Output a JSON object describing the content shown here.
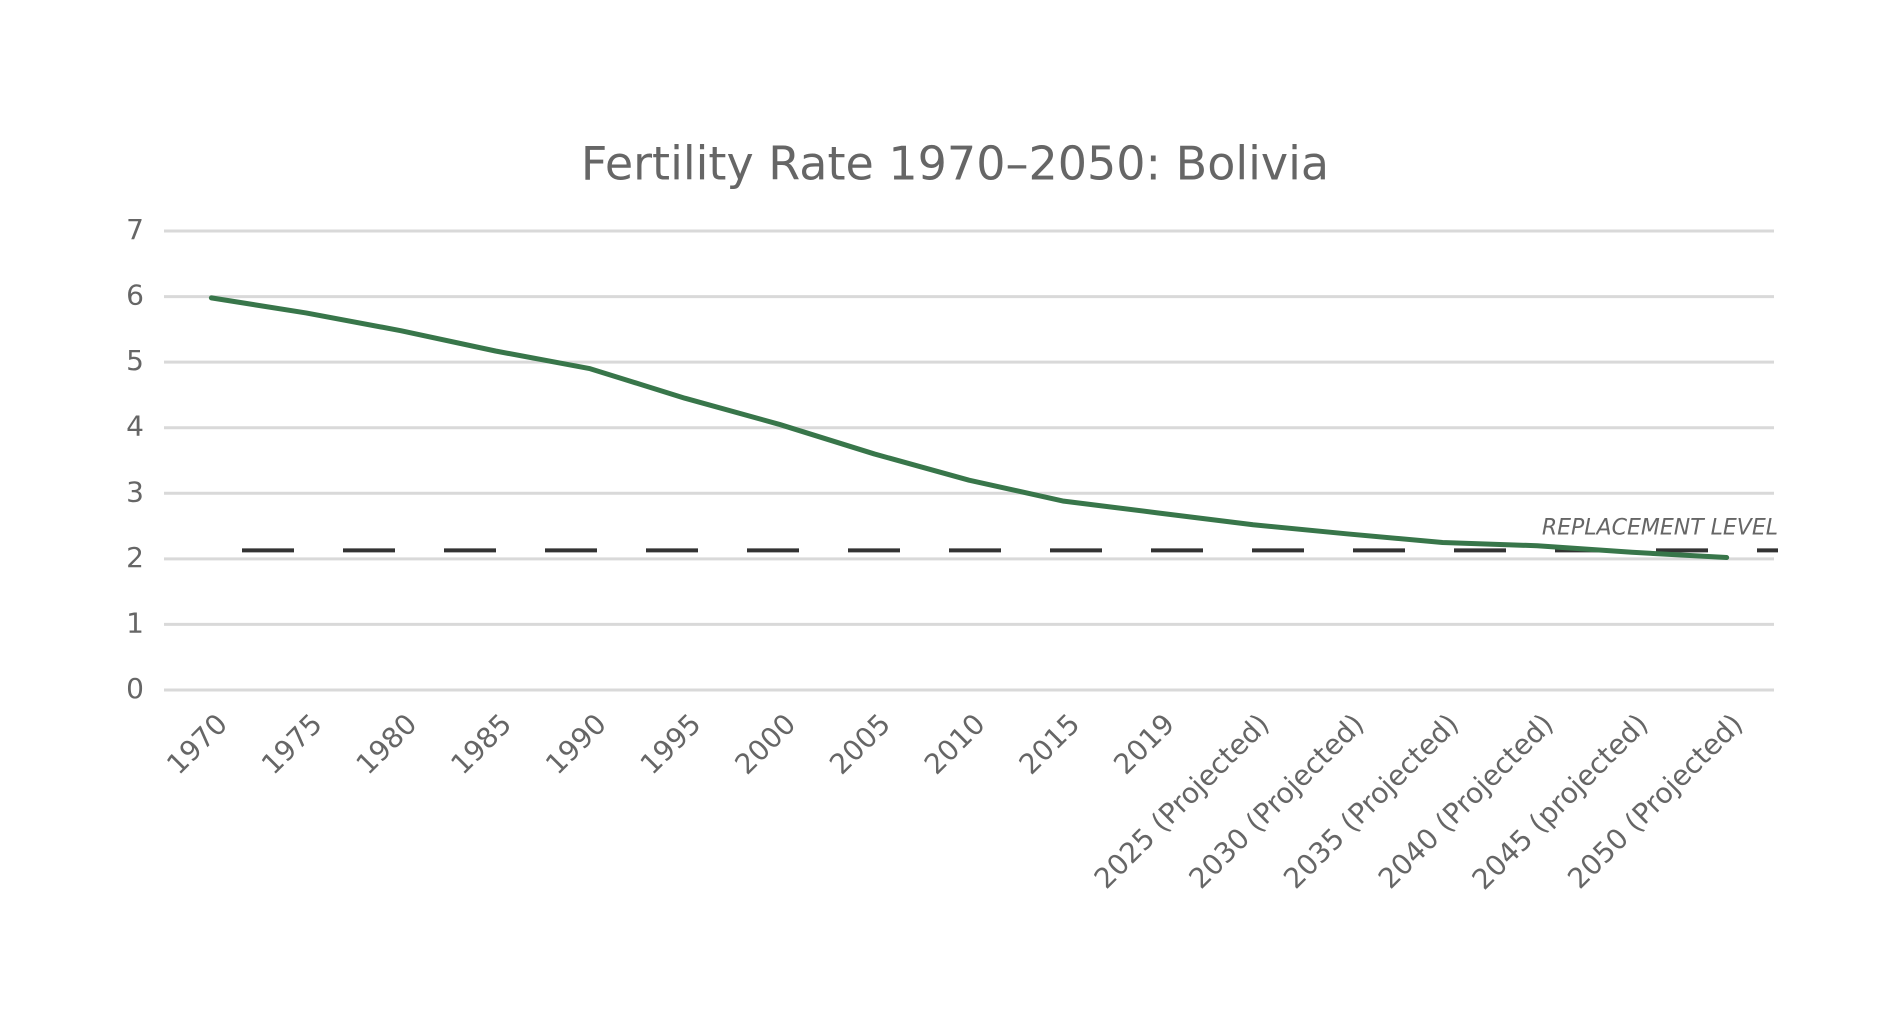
{
  "chart_data": {
    "type": "line",
    "title": "Fertility Rate 1970–2050: Bolivia",
    "categories": [
      "1970",
      "1975",
      "1980",
      "1985",
      "1990",
      "1995",
      "2000",
      "2005",
      "2010",
      "2015",
      "2019",
      "2025 (Projected)",
      "2030 (Projected)",
      "2035 (Projected)",
      "2040 (Projected)",
      "2045 (projected)",
      "2050 (Projected)"
    ],
    "series": [
      {
        "name": "Fertility rate",
        "color": "#38764a",
        "values": [
          5.98,
          5.75,
          5.48,
          5.17,
          4.9,
          4.45,
          4.05,
          3.6,
          3.2,
          2.88,
          2.7,
          2.52,
          2.38,
          2.25,
          2.2,
          2.1,
          2.02
        ]
      }
    ],
    "reference_line": {
      "value": 2.13,
      "label": "REPLACEMENT LEVEL",
      "color": "#333333"
    },
    "ylim": [
      0,
      7
    ],
    "yticks": [
      0,
      1,
      2,
      3,
      4,
      5,
      6,
      7
    ],
    "grid": true
  }
}
